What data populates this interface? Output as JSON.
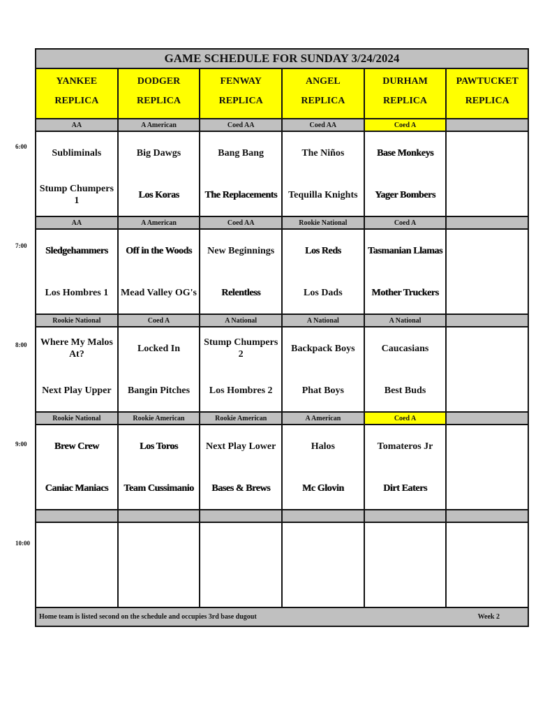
{
  "title": "GAME SCHEDULE FOR SUNDAY 3/24/2024",
  "fields": [
    [
      "YANKEE",
      "REPLICA"
    ],
    [
      "DODGER",
      "REPLICA"
    ],
    [
      "FENWAY",
      "REPLICA"
    ],
    [
      "ANGEL",
      "REPLICA"
    ],
    [
      "DURHAM",
      "REPLICA"
    ],
    [
      "PAWTUCKET",
      "REPLICA"
    ]
  ],
  "highlight_color": "#ffff00",
  "slots": [
    {
      "time": "6:00",
      "divisions": [
        {
          "name": "AA"
        },
        {
          "name": "A American"
        },
        {
          "name": "Coed AA"
        },
        {
          "name": "Coed AA"
        },
        {
          "name": "Coed A",
          "highlight": true
        },
        {
          "name": ""
        }
      ],
      "games": [
        [
          {
            "t": "Subliminals"
          },
          {
            "t": "Stump Chumpers 1"
          }
        ],
        [
          {
            "t": "Big Dawgs"
          },
          {
            "t": "Los Koras",
            "heavy": true
          }
        ],
        [
          {
            "t": "Bang Bang"
          },
          {
            "t": "The Replacements",
            "heavy": true
          }
        ],
        [
          {
            "t": "The Niños"
          },
          {
            "t": "Tequilla Knights"
          }
        ],
        [
          {
            "t": "Base Monkeys",
            "heavy": true
          },
          {
            "t": "Yager Bombers",
            "heavy": true
          }
        ],
        [
          {
            "t": ""
          },
          {
            "t": ""
          }
        ]
      ]
    },
    {
      "time": "7:00",
      "divisions": [
        {
          "name": "AA"
        },
        {
          "name": "A American"
        },
        {
          "name": "Coed AA"
        },
        {
          "name": "Rookie National"
        },
        {
          "name": "Coed A"
        },
        {
          "name": ""
        }
      ],
      "games": [
        [
          {
            "t": "Sledgehammers",
            "heavy": true
          },
          {
            "t": "Los Hombres 1"
          }
        ],
        [
          {
            "t": "Off in the Woods",
            "heavy": true
          },
          {
            "t": "Mead Valley OG's"
          }
        ],
        [
          {
            "t": "New Beginnings"
          },
          {
            "t": "Relentless",
            "heavy": true
          }
        ],
        [
          {
            "t": "Los Reds",
            "heavy": true
          },
          {
            "t": "Los Dads"
          }
        ],
        [
          {
            "t": "Tasmanian Llamas",
            "heavy": true
          },
          {
            "t": "Mother Truckers",
            "heavy": true
          }
        ],
        [
          {
            "t": ""
          },
          {
            "t": ""
          }
        ]
      ]
    },
    {
      "time": "8:00",
      "divisions": [
        {
          "name": "Rookie National"
        },
        {
          "name": "Coed A"
        },
        {
          "name": "A National"
        },
        {
          "name": "A National"
        },
        {
          "name": "A National"
        },
        {
          "name": ""
        }
      ],
      "games": [
        [
          {
            "t": "Where My Malos At?"
          },
          {
            "t": "Next Play Upper"
          }
        ],
        [
          {
            "t": "Locked In"
          },
          {
            "t": "Bangin Pitches"
          }
        ],
        [
          {
            "t": "Stump Chumpers 2"
          },
          {
            "t": "Los Hombres 2"
          }
        ],
        [
          {
            "t": "Backpack Boys"
          },
          {
            "t": "Phat Boys"
          }
        ],
        [
          {
            "t": "Caucasians"
          },
          {
            "t": "Best Buds"
          }
        ],
        [
          {
            "t": ""
          },
          {
            "t": ""
          }
        ]
      ]
    },
    {
      "time": "9:00",
      "divisions": [
        {
          "name": "Rookie National"
        },
        {
          "name": "Rookie American"
        },
        {
          "name": "Rookie American"
        },
        {
          "name": "A American"
        },
        {
          "name": "Coed A",
          "highlight": true
        },
        {
          "name": ""
        }
      ],
      "games": [
        [
          {
            "t": "Brew Crew",
            "heavy": true
          },
          {
            "t": "Caniac Maniacs",
            "heavy": true
          }
        ],
        [
          {
            "t": "Los Toros",
            "heavy": true
          },
          {
            "t": "Team Cussimanio",
            "heavy": true
          }
        ],
        [
          {
            "t": "Next Play Lower"
          },
          {
            "t": "Bases & Brews",
            "heavy": true
          }
        ],
        [
          {
            "t": "Halos"
          },
          {
            "t": "Mc Glovin",
            "heavy": true
          }
        ],
        [
          {
            "t": "Tomateros Jr"
          },
          {
            "t": "Dirt Eaters",
            "heavy": true
          }
        ],
        [
          {
            "t": ""
          },
          {
            "t": ""
          }
        ]
      ]
    },
    {
      "time": "10:00",
      "divisions": [
        {
          "name": ""
        },
        {
          "name": ""
        },
        {
          "name": ""
        },
        {
          "name": ""
        },
        {
          "name": ""
        },
        {
          "name": ""
        }
      ],
      "games": [
        [
          {
            "t": ""
          },
          {
            "t": ""
          }
        ],
        [
          {
            "t": ""
          },
          {
            "t": ""
          }
        ],
        [
          {
            "t": ""
          },
          {
            "t": ""
          }
        ],
        [
          {
            "t": ""
          },
          {
            "t": ""
          }
        ],
        [
          {
            "t": ""
          },
          {
            "t": ""
          }
        ],
        [
          {
            "t": ""
          },
          {
            "t": ""
          }
        ]
      ]
    }
  ],
  "footer": {
    "note": "Home team is listed second on the schedule and occupies 3rd base dugout",
    "week": "Week 2"
  }
}
